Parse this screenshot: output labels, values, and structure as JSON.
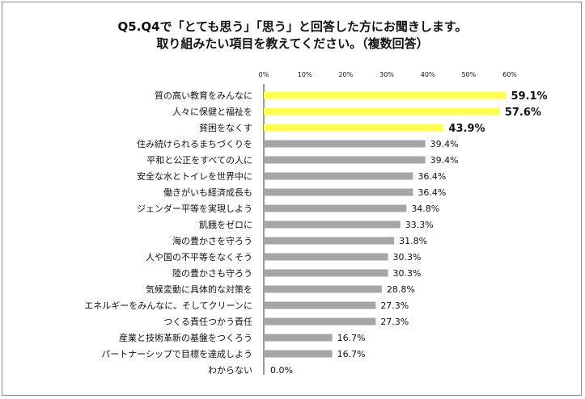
{
  "title_line1": "Q5.Q4で「とても思う」「思う」と回答した方にお聞きします。",
  "title_line2": "取り組みたい項目を教えてください。（複数回答）",
  "colors": {
    "highlight": "#ffff4d",
    "normal": "#a6a6a6",
    "axis": "#333333",
    "text": "#111111"
  },
  "chart_data": {
    "type": "bar",
    "orientation": "horizontal",
    "title": "Q5.Q4で「とても思う」「思う」と回答した方にお聞きします。 取り組みたい項目を教えてください。（複数回答）",
    "xlim": [
      0,
      60
    ],
    "ticks": [
      0,
      10,
      20,
      30,
      40,
      50,
      60
    ],
    "tick_labels": [
      "0%",
      "10%",
      "20%",
      "30%",
      "40%",
      "50%",
      "60%"
    ],
    "grid": false,
    "categories": [
      "質の高い教育をみんなに",
      "人々に保健と福祉を",
      "貧困をなくす",
      "住み続けられるまちづくりを",
      "平和と公正をすべての人に",
      "安全な水とトイレを世界中に",
      "働きがいも経済成長も",
      "ジェンダー平等を実現しよう",
      "飢餓をゼロに",
      "海の豊かさを守ろう",
      "人や国の不平等をなくそう",
      "陸の豊かさも守ろう",
      "気候変動に具体的な対策を",
      "エネルギーをみんなに、そしてクリーンに",
      "つくる責任つかう責任",
      "産業と技術革新の基盤をつくろう",
      "パートナーシップで目標を達成しよう",
      "わからない"
    ],
    "values": [
      59.1,
      57.6,
      43.9,
      39.4,
      39.4,
      36.4,
      36.4,
      34.8,
      33.3,
      31.8,
      30.3,
      30.3,
      28.8,
      27.3,
      27.3,
      16.7,
      16.7,
      0.0
    ],
    "value_labels": [
      "59.1%",
      "57.6%",
      "43.9%",
      "39.4%",
      "39.4%",
      "36.4%",
      "36.4%",
      "34.8%",
      "33.3%",
      "31.8%",
      "30.3%",
      "30.3%",
      "28.8%",
      "27.3%",
      "27.3%",
      "16.7%",
      "16.7%",
      "0.0%"
    ],
    "highlight_top": 3
  }
}
